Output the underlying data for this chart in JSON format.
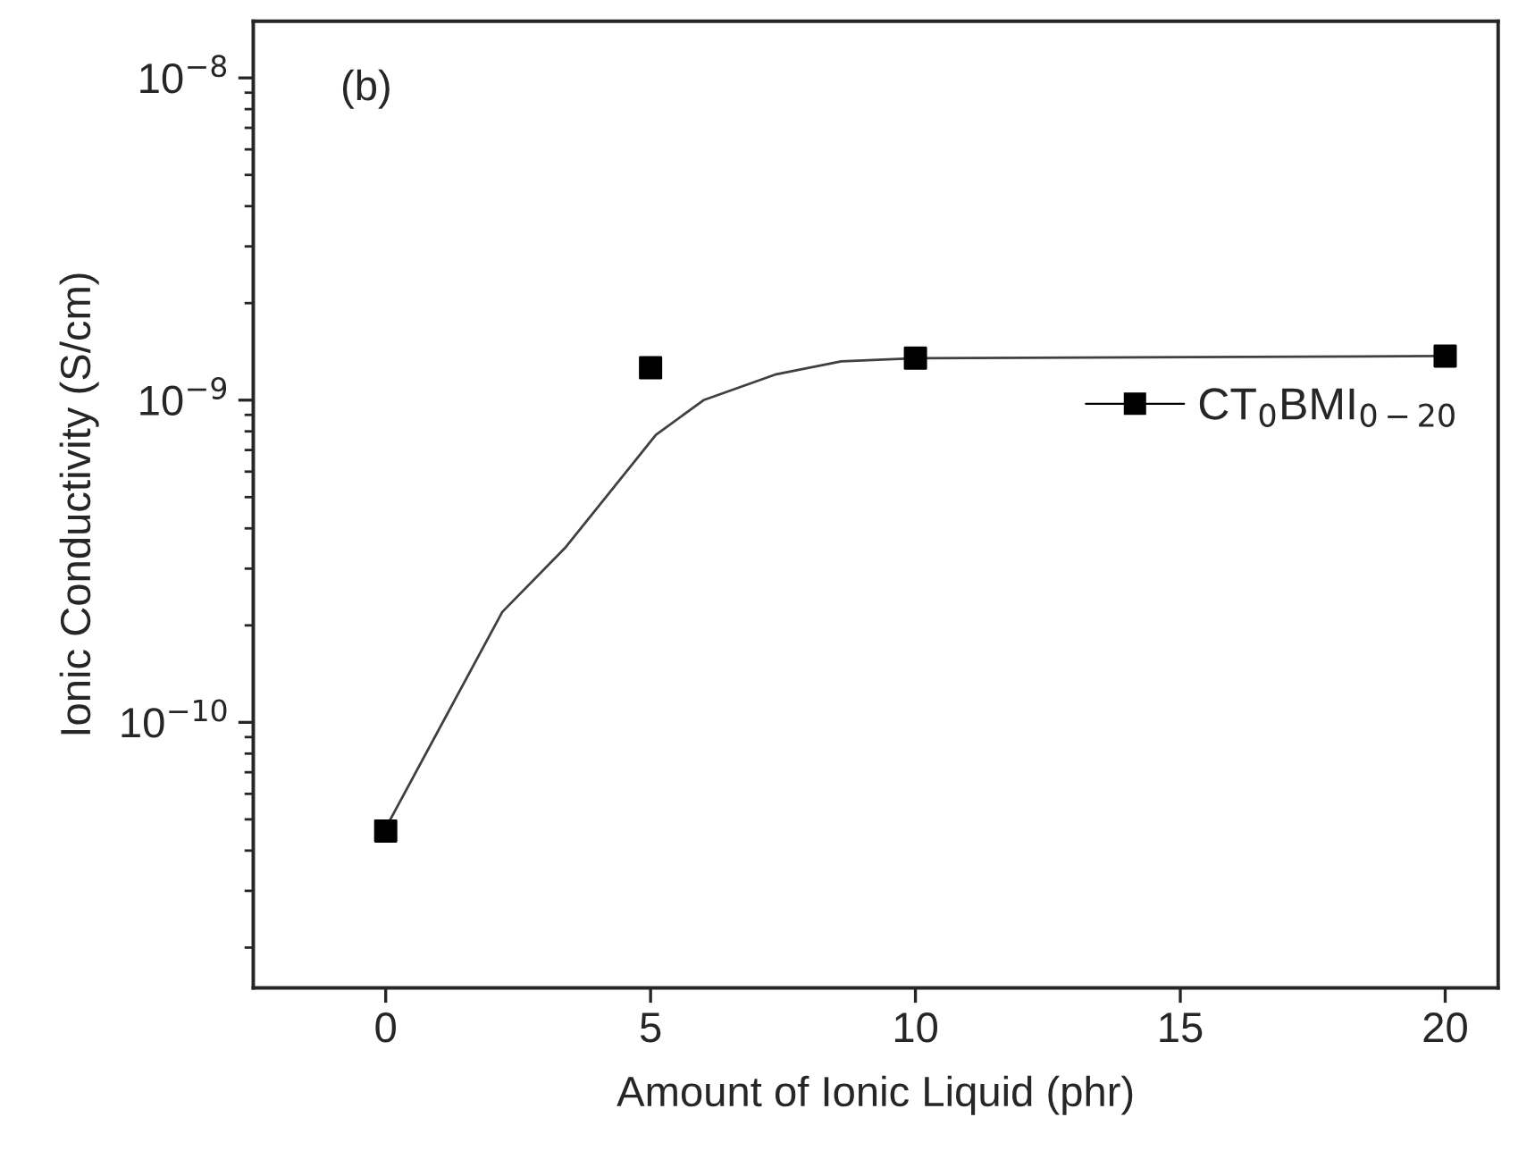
{
  "chart_data": {
    "type": "scatter",
    "xlabel": "Amount of Ionic Liquid (phr)",
    "ylabel": "Ionic Conductivity (S/cm)",
    "annotations": [
      "(b)"
    ],
    "series": [
      {
        "name": "CT$_{0}$BMI$_{0−20}$",
        "color": "#000000",
        "marker": "square",
        "x": [
          0,
          5,
          10,
          20
        ],
        "values": [
          4.6e-11,
          1.26e-09,
          1.35e-09,
          1.37e-09
        ]
      },
      {
        "type": "line",
        "color": "#404040",
        "line_style": "solid",
        "x": [
          0,
          2.2,
          3.4,
          5.1,
          6.0,
          7.35,
          8.6,
          10,
          20
        ],
        "values": [
          4.7e-11,
          2.2e-10,
          3.5e-10,
          7.8e-10,
          1e-09,
          1.2e-09,
          1.32e-09,
          1.35e-09,
          1.37e-09
        ]
      }
    ],
    "log": "y",
    "xlim": [
      -2.5,
      21
    ],
    "ylim": [
      1.5e-11,
      1.5e-08
    ],
    "xticks": [
      0,
      5,
      10,
      15,
      20
    ],
    "yticks": [
      {
        "value": 1e-10,
        "label": "10$^{−10}$"
      },
      {
        "value": 1e-09,
        "label": "10$^{−9}$"
      },
      {
        "value": 1e-08,
        "label": "10$^{−8}$"
      }
    ],
    "grid": false,
    "legend": "right"
  }
}
